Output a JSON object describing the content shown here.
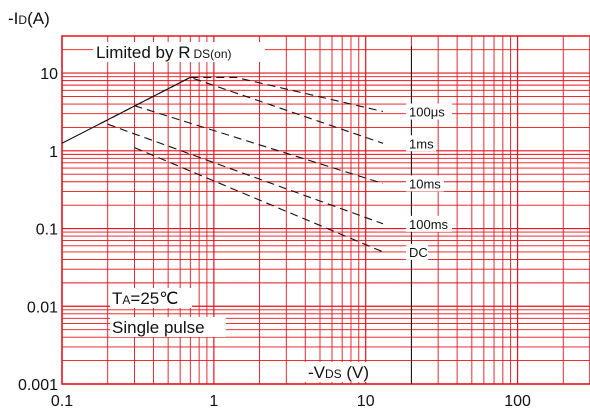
{
  "chart_data": {
    "type": "line",
    "title": "",
    "ylabel_prefix": "-I",
    "ylabel_sub": "D",
    "ylabel_suffix": "(A)",
    "xlabel_prefix": "-V",
    "xlabel_sub": "DS",
    "xlabel_suffix": " (V)",
    "xscale": "log",
    "yscale": "log",
    "xlim": [
      0.1,
      300
    ],
    "ylim": [
      0.001,
      30
    ],
    "grid": true,
    "x_ticks": [
      {
        "value": 0.1,
        "label": "0.1"
      },
      {
        "value": 1,
        "label": "1"
      },
      {
        "value": 10,
        "label": "10"
      },
      {
        "value": 100,
        "label": "100"
      }
    ],
    "y_ticks": [
      {
        "value": 10,
        "label": "10"
      },
      {
        "value": 1,
        "label": "1"
      },
      {
        "value": 0.1,
        "label": "0.1"
      },
      {
        "value": 0.01,
        "label": "0.01"
      },
      {
        "value": 0.001,
        "label": "0.001"
      }
    ],
    "limit_label_prefix": "Limited by R",
    "limit_label_sub": "DS(on)",
    "conditions": {
      "ta_prefix": "T",
      "ta_sub": "A",
      "ta_suffix": "=25℃",
      "pulse": "Single pulse"
    },
    "series": [
      {
        "name": "Limited by RDS(on)",
        "style": "solid",
        "points": [
          [
            0.1,
            1.25
          ],
          [
            0.7,
            8.8
          ]
        ]
      },
      {
        "name": "100μs",
        "style": "dashed",
        "points": [
          [
            0.7,
            8.8
          ],
          [
            1.4,
            8.8
          ],
          [
            13,
            3.2
          ]
        ]
      },
      {
        "name": "1ms",
        "style": "dashed",
        "points": [
          [
            0.18,
            2.25
          ],
          [
            0.7,
            8.8
          ],
          [
            13,
            1.25
          ]
        ]
      },
      {
        "name": "10ms",
        "style": "dashed",
        "points": [
          [
            0.3,
            3.8
          ],
          [
            13,
            0.38
          ]
        ]
      },
      {
        "name": "100ms",
        "style": "dashed",
        "points": [
          [
            0.2,
            2.2
          ],
          [
            13,
            0.115
          ]
        ]
      },
      {
        "name": "DC",
        "style": "dashed",
        "points": [
          [
            0.3,
            1.1
          ],
          [
            13,
            0.05
          ]
        ]
      }
    ],
    "curve_labels": [
      {
        "text": "100μs",
        "x": 19,
        "y": 3.2
      },
      {
        "text": "1ms",
        "x": 19,
        "y": 1.25
      },
      {
        "text": "10ms",
        "x": 19,
        "y": 0.38
      },
      {
        "text": "100ms",
        "x": 19,
        "y": 0.115
      },
      {
        "text": "DC",
        "x": 19,
        "y": 0.05
      }
    ],
    "line_color": "#111111",
    "grid_color": "#e8131b",
    "vertical_marker_x": 20
  }
}
